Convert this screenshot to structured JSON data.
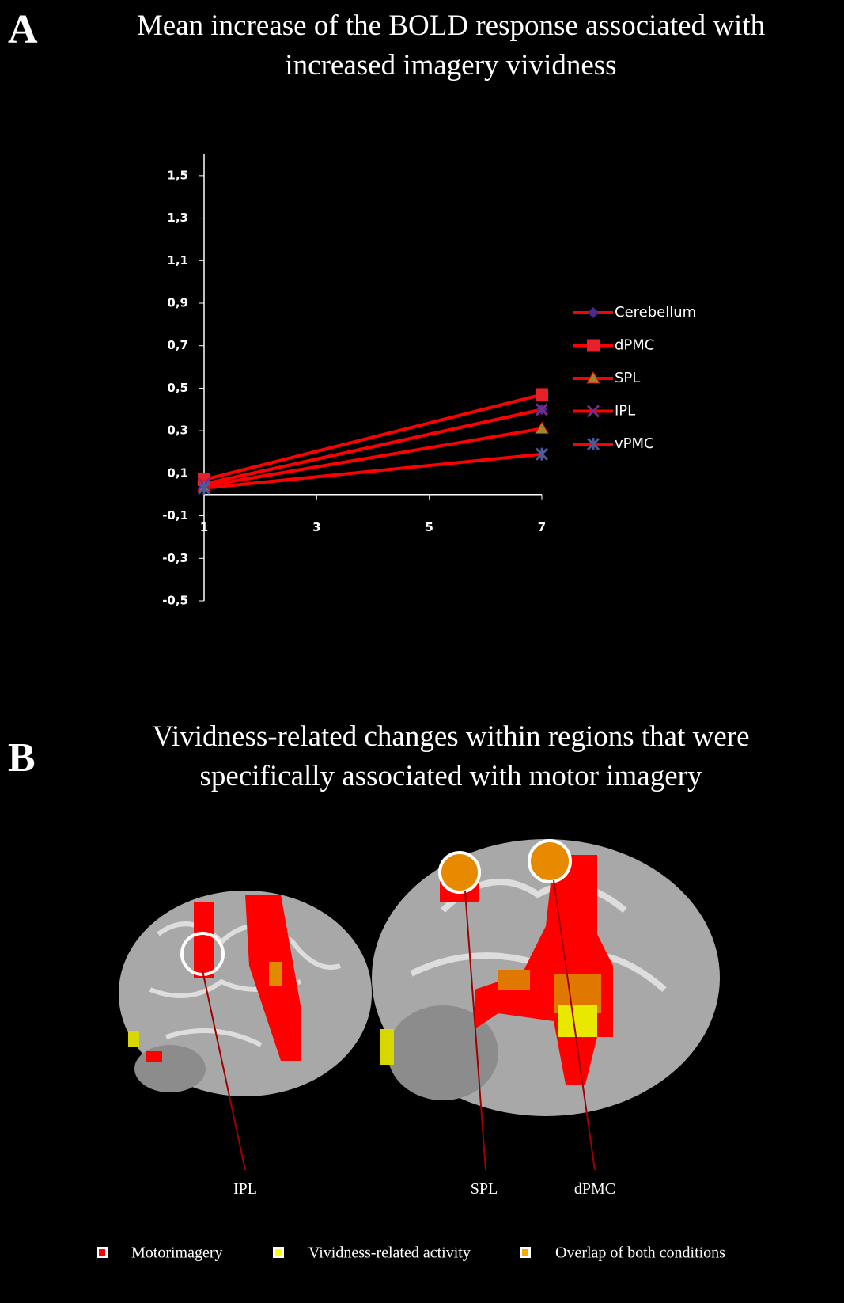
{
  "panel_a": {
    "label": "A"
  },
  "chart_data": {
    "type": "line",
    "title": "Mean increase of the BOLD response associated with increased imagery vividness",
    "x": [
      1,
      7
    ],
    "xlim": [
      1,
      7
    ],
    "xticks": [
      1,
      3,
      5,
      7
    ],
    "ylim": [
      -0.5,
      1.6
    ],
    "yticks": [
      {
        "value": 1.5,
        "label": "1,5"
      },
      {
        "value": 1.3,
        "label": "1,3"
      },
      {
        "value": 1.1,
        "label": "1,1"
      },
      {
        "value": 0.9,
        "label": "0,9"
      },
      {
        "value": 0.7,
        "label": "0,7"
      },
      {
        "value": 0.5,
        "label": "0,5"
      },
      {
        "value": 0.3,
        "label": "0,3"
      },
      {
        "value": 0.1,
        "label": "0,1"
      },
      {
        "value": -0.1,
        "label": "-0,1"
      },
      {
        "value": -0.3,
        "label": "-0,3"
      },
      {
        "value": -0.5,
        "label": "-0,5"
      }
    ],
    "grid": false,
    "legend": "right",
    "series": [
      {
        "name": "Cerebellum",
        "color": "#ff0000",
        "marker": "diamond",
        "marker_color": "#4a2a8a",
        "values": [
          0.05,
          0.4
        ]
      },
      {
        "name": "dPMC",
        "color": "#ff0000",
        "marker": "square",
        "marker_color": "#e8202a",
        "values": [
          0.07,
          0.47
        ]
      },
      {
        "name": "SPL",
        "color": "#ff0000",
        "marker": "triangle",
        "marker_color": "#9a8a2a",
        "values": [
          0.04,
          0.31
        ]
      },
      {
        "name": "IPL",
        "color": "#ff0000",
        "marker": "x",
        "marker_color": "#7a2a8a",
        "values": [
          0.05,
          0.4
        ]
      },
      {
        "name": "vPMC",
        "color": "#ff0000",
        "marker": "star",
        "marker_color": "#4a5a9a",
        "values": [
          0.03,
          0.19
        ]
      }
    ]
  },
  "panel_b": {
    "label": "B",
    "title": "Vividness-related changes within regions that were specifically associated with motor imagery",
    "regions": [
      "IPL",
      "SPL",
      "dPMC"
    ],
    "legend": [
      {
        "label": "Motorimagery",
        "color": "#ff0000"
      },
      {
        "label": "Vividness-related activity",
        "color": "#ffff00"
      },
      {
        "label": "Overlap of both conditions",
        "color": "#ffa500"
      }
    ]
  }
}
